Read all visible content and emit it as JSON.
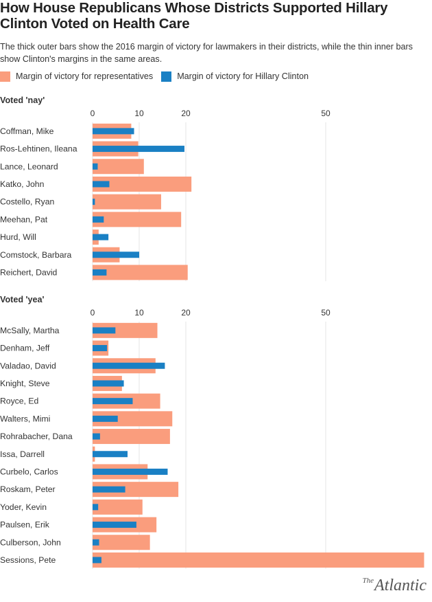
{
  "chart_data": {
    "type": "bar",
    "title": "How House Republicans Whose Districts Supported Hillary Clinton Voted on Health Care",
    "subtitle": "The thick outer bars show the 2016 margin of victory for lawmakers in their districts, while the thin inner bars show Clinton's margins in the same areas.",
    "legend": [
      {
        "name": "Margin of victory for representatives",
        "color": "#fa9d7d"
      },
      {
        "name": "Margin of victory for Hillary Clinton",
        "color": "#1a80c4"
      }
    ],
    "xticks": [
      0,
      10,
      20,
      50
    ],
    "xlim": [
      0,
      72
    ],
    "groups": [
      {
        "title": "Voted 'nay'",
        "categories": [
          "Coffman, Mike",
          "Ros-Lehtinen, Ileana",
          "Lance, Leonard",
          "Katko, John",
          "Costello, Ryan",
          "Meehan, Pat",
          "Hurd, Will",
          "Comstock, Barbara",
          "Reichert, David"
        ],
        "series": [
          {
            "name": "Margin of victory for representatives",
            "values": [
              8.3,
              9.8,
              11.0,
              21.2,
              14.7,
              19.0,
              1.3,
              5.8,
              20.4
            ]
          },
          {
            "name": "Margin of victory for Hillary Clinton",
            "values": [
              8.9,
              19.7,
              1.1,
              3.6,
              0.5,
              2.4,
              3.4,
              10.0,
              3.0
            ]
          }
        ]
      },
      {
        "title": "Voted 'yea'",
        "categories": [
          "McSally, Martha",
          "Denham, Jeff",
          "Valadao, David",
          "Knight, Steve",
          "Royce, Ed",
          "Walters, Mimi",
          "Rohrabacher, Dana",
          "Issa, Darrell",
          "Curbelo, Carlos",
          "Roskam, Peter",
          "Yoder, Kevin",
          "Paulsen, Erik",
          "Culberson, John",
          "Sessions, Pete"
        ],
        "series": [
          {
            "name": "Margin of victory for representatives",
            "values": [
              13.9,
              3.4,
              13.5,
              6.3,
              14.5,
              17.1,
              16.6,
              0.5,
              11.8,
              18.4,
              10.7,
              13.7,
              12.3,
              71.1
            ]
          },
          {
            "name": "Margin of victory for Hillary Clinton",
            "values": [
              4.9,
              3.1,
              15.5,
              6.7,
              8.6,
              5.4,
              1.6,
              7.5,
              16.1,
              7.0,
              1.2,
              9.4,
              1.4,
              1.9
            ]
          }
        ]
      }
    ]
  },
  "brand": {
    "logo_prefix": "The",
    "logo_word": "Atlantic"
  }
}
